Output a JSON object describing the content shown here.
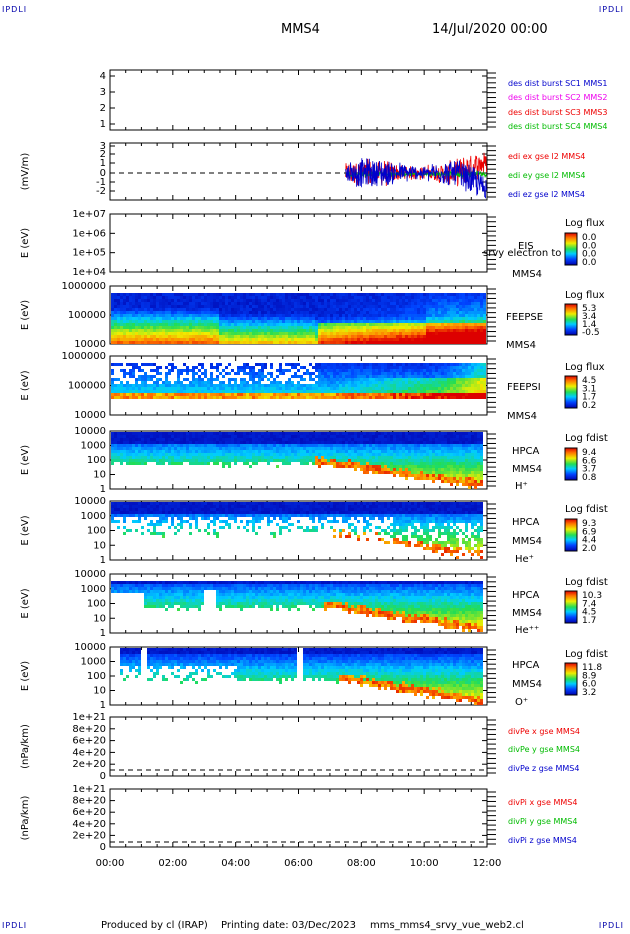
{
  "header": {
    "corner_tl": "IPDLI",
    "corner_tr": "IPDLI",
    "corner_bl": "IPDLI",
    "corner_br": "IPDLI",
    "spacecraft": "MMS4",
    "date": "14/Jul/2020 00:00"
  },
  "footer": {
    "produced": "Produced by cl (IRAP)",
    "printing": "Printing date: 03/Dec/2023",
    "script": "mms_mms4_srvy_vue_web2.cl"
  },
  "colors": {
    "blue": "#0000cc",
    "magenta": "#ee00ee",
    "red": "#ee0000",
    "green": "#00bb00"
  },
  "chart_data": [
    {
      "type": "line",
      "panel": "des-dist",
      "yticks": [
        "4",
        "3",
        "2",
        "1"
      ],
      "ylim": [
        0.6,
        4.4
      ],
      "series": [
        {
          "name": "des dist burst SC1 MMS1",
          "color": "#0000cc",
          "values": []
        },
        {
          "name": "des dist burst SC2 MMS2",
          "color": "#ee00ee",
          "values": []
        },
        {
          "name": "des dist burst SC3 MMS3",
          "color": "#ee0000",
          "values": []
        },
        {
          "name": "des dist burst SC4 MMS4",
          "color": "#00bb00",
          "values": []
        }
      ]
    },
    {
      "type": "line",
      "panel": "edi-e",
      "ylabel": "(mV/m)",
      "yticks": [
        "3",
        "2",
        "1",
        "0",
        "-1",
        "-2"
      ],
      "ylim": [
        -2.6,
        3.0
      ],
      "data_start_hour": 7.5,
      "series": [
        {
          "name": "edi ex gse l2 MMS4",
          "color": "#ee0000"
        },
        {
          "name": "edi ey gse l2 MMS4",
          "color": "#00bb00"
        },
        {
          "name": "edi ez gse l2 MMS4",
          "color": "#0000cc"
        }
      ]
    },
    {
      "type": "heatmap",
      "panel": "eis",
      "ylabel": "E (eV)",
      "yticks": [
        "1e+07",
        "1e+06",
        "1e+05",
        "1e+04"
      ],
      "instrument": "EIS",
      "instrument2": "srvy electron to",
      "sc": "MMS4",
      "cbar_title": "Log flux",
      "cbar_ticks": [
        "0.0",
        "0.0",
        "0.0",
        "0.0"
      ],
      "coverage": "none"
    },
    {
      "type": "heatmap",
      "panel": "feepse",
      "ylabel": "E (eV)",
      "yticks": [
        "1000000",
        "100000",
        "10000"
      ],
      "instrument": "FEEPSE",
      "sc": "MMS4",
      "cbar_title": "Log flux",
      "cbar_ticks": [
        "5.3",
        "3.4",
        "1.4",
        "-0.5"
      ]
    },
    {
      "type": "heatmap",
      "panel": "feepsi",
      "ylabel": "E (eV)",
      "yticks": [
        "1000000",
        "100000",
        "10000"
      ],
      "instrument": "FEEPSI",
      "sc": "MMS4",
      "cbar_title": "Log flux",
      "cbar_ticks": [
        "4.5",
        "3.1",
        "1.7",
        "0.2"
      ]
    },
    {
      "type": "heatmap",
      "panel": "hpca-h",
      "ylabel": "E (eV)",
      "yticks": [
        "10000",
        "1000",
        "100",
        "10",
        "1"
      ],
      "instrument": "HPCA",
      "sc": "MMS4",
      "species": "H⁺",
      "cbar_title": "Log fdist",
      "cbar_ticks": [
        "9.4",
        "6.6",
        "3.7",
        "0.8"
      ]
    },
    {
      "type": "heatmap",
      "panel": "hpca-he",
      "ylabel": "E (eV)",
      "yticks": [
        "10000",
        "1000",
        "100",
        "10",
        "1"
      ],
      "instrument": "HPCA",
      "sc": "MMS4",
      "species": "He⁺",
      "cbar_title": "Log fdist",
      "cbar_ticks": [
        "9.3",
        "6.9",
        "4.4",
        "2.0"
      ]
    },
    {
      "type": "heatmap",
      "panel": "hpca-hepp",
      "ylabel": "E (eV)",
      "yticks": [
        "10000",
        "1000",
        "100",
        "10",
        "1"
      ],
      "instrument": "HPCA",
      "sc": "MMS4",
      "species": "He⁺⁺",
      "cbar_title": "Log fdist",
      "cbar_ticks": [
        "10.3",
        "7.4",
        "4.5",
        "1.7"
      ]
    },
    {
      "type": "heatmap",
      "panel": "hpca-o",
      "ylabel": "E (eV)",
      "yticks": [
        "10000",
        "1000",
        "100",
        "10",
        "1"
      ],
      "instrument": "HPCA",
      "sc": "MMS4",
      "species": "O⁺",
      "cbar_title": "Log fdist",
      "cbar_ticks": [
        "11.8",
        "8.9",
        "6.0",
        "3.2"
      ]
    },
    {
      "type": "line",
      "panel": "divpe",
      "ylabel": "(nPa/km)",
      "yticks": [
        "1e+21",
        "8e+20",
        "6e+20",
        "4e+20",
        "2e+20",
        "0"
      ],
      "ylim": [
        0,
        1e+21
      ],
      "series": [
        {
          "name": "divPe x gse MMS4",
          "color": "#ee0000"
        },
        {
          "name": "divPe y gse MMS4",
          "color": "#00bb00"
        },
        {
          "name": "divPe z gse MMS4",
          "color": "#0000cc"
        }
      ]
    },
    {
      "type": "line",
      "panel": "divpi",
      "ylabel": "(nPa/km)",
      "yticks": [
        "1e+21",
        "8e+20",
        "6e+20",
        "4e+20",
        "2e+20",
        "0"
      ],
      "ylim": [
        0,
        1e+21
      ],
      "series": [
        {
          "name": "divPi x gse MMS4",
          "color": "#ee0000"
        },
        {
          "name": "divPi y gse MMS4",
          "color": "#00bb00"
        },
        {
          "name": "divPi z gse MMS4",
          "color": "#0000cc"
        }
      ]
    }
  ],
  "xaxis": {
    "ticks": [
      "00:00",
      "02:00",
      "04:00",
      "06:00",
      "08:00",
      "10:00",
      "12:00"
    ],
    "range_hours": [
      0,
      12
    ]
  }
}
